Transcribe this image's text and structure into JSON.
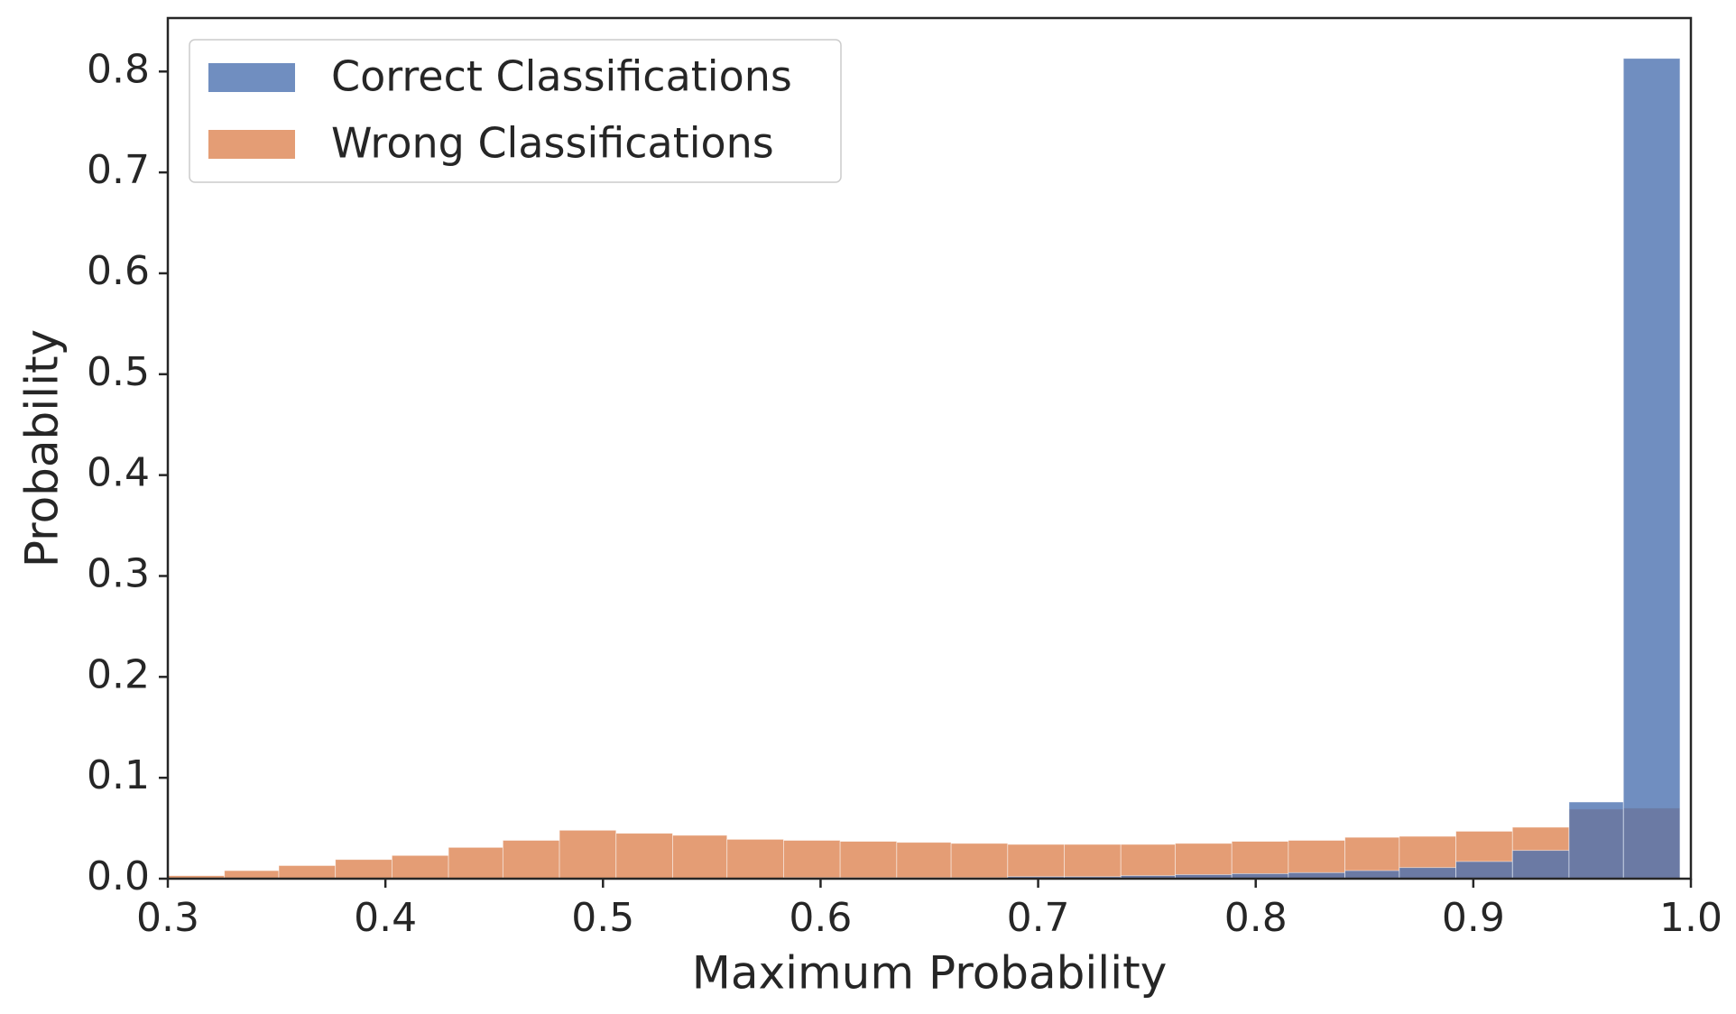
{
  "chart_data": {
    "type": "histogram",
    "x_label": "Maximum Probability",
    "y_label": "Probability",
    "bins": [
      0.3,
      0.326,
      0.351,
      0.377,
      0.403,
      0.429,
      0.454,
      0.48,
      0.506,
      0.532,
      0.557,
      0.583,
      0.609,
      0.635,
      0.66,
      0.686,
      0.712,
      0.738,
      0.763,
      0.789,
      0.815,
      0.841,
      0.866,
      0.892,
      0.918,
      0.944,
      0.969,
      0.995
    ],
    "series": [
      {
        "name": "Correct Classifications",
        "color": "#4c72b0",
        "values": [
          0,
          0,
          0,
          0,
          0,
          0,
          0,
          0,
          0,
          0,
          0,
          0.001,
          0.001,
          0.001,
          0.001,
          0.002,
          0.002,
          0.003,
          0.004,
          0.005,
          0.006,
          0.008,
          0.011,
          0.017,
          0.028,
          0.076,
          0.813
        ]
      },
      {
        "name": "Wrong Classifications",
        "color": "#dd8452",
        "values": [
          0.003,
          0.008,
          0.013,
          0.019,
          0.023,
          0.031,
          0.038,
          0.048,
          0.045,
          0.043,
          0.039,
          0.038,
          0.037,
          0.036,
          0.035,
          0.034,
          0.034,
          0.034,
          0.035,
          0.037,
          0.038,
          0.041,
          0.042,
          0.047,
          0.051,
          0.069,
          0.07
        ]
      }
    ],
    "xlim": [
      0.3,
      1.0
    ],
    "ylim": [
      0,
      0.853
    ],
    "xticks": [
      0.3,
      0.4,
      0.5,
      0.6,
      0.7,
      0.8,
      0.9,
      {
        "value": 1.0,
        "label": "1.0"
      }
    ],
    "yticks": [
      {
        "value": 0,
        "label": "0.0"
      },
      0.1,
      0.2,
      0.3,
      0.4,
      0.5,
      0.6,
      0.7,
      0.8
    ],
    "legend": "upper left"
  }
}
